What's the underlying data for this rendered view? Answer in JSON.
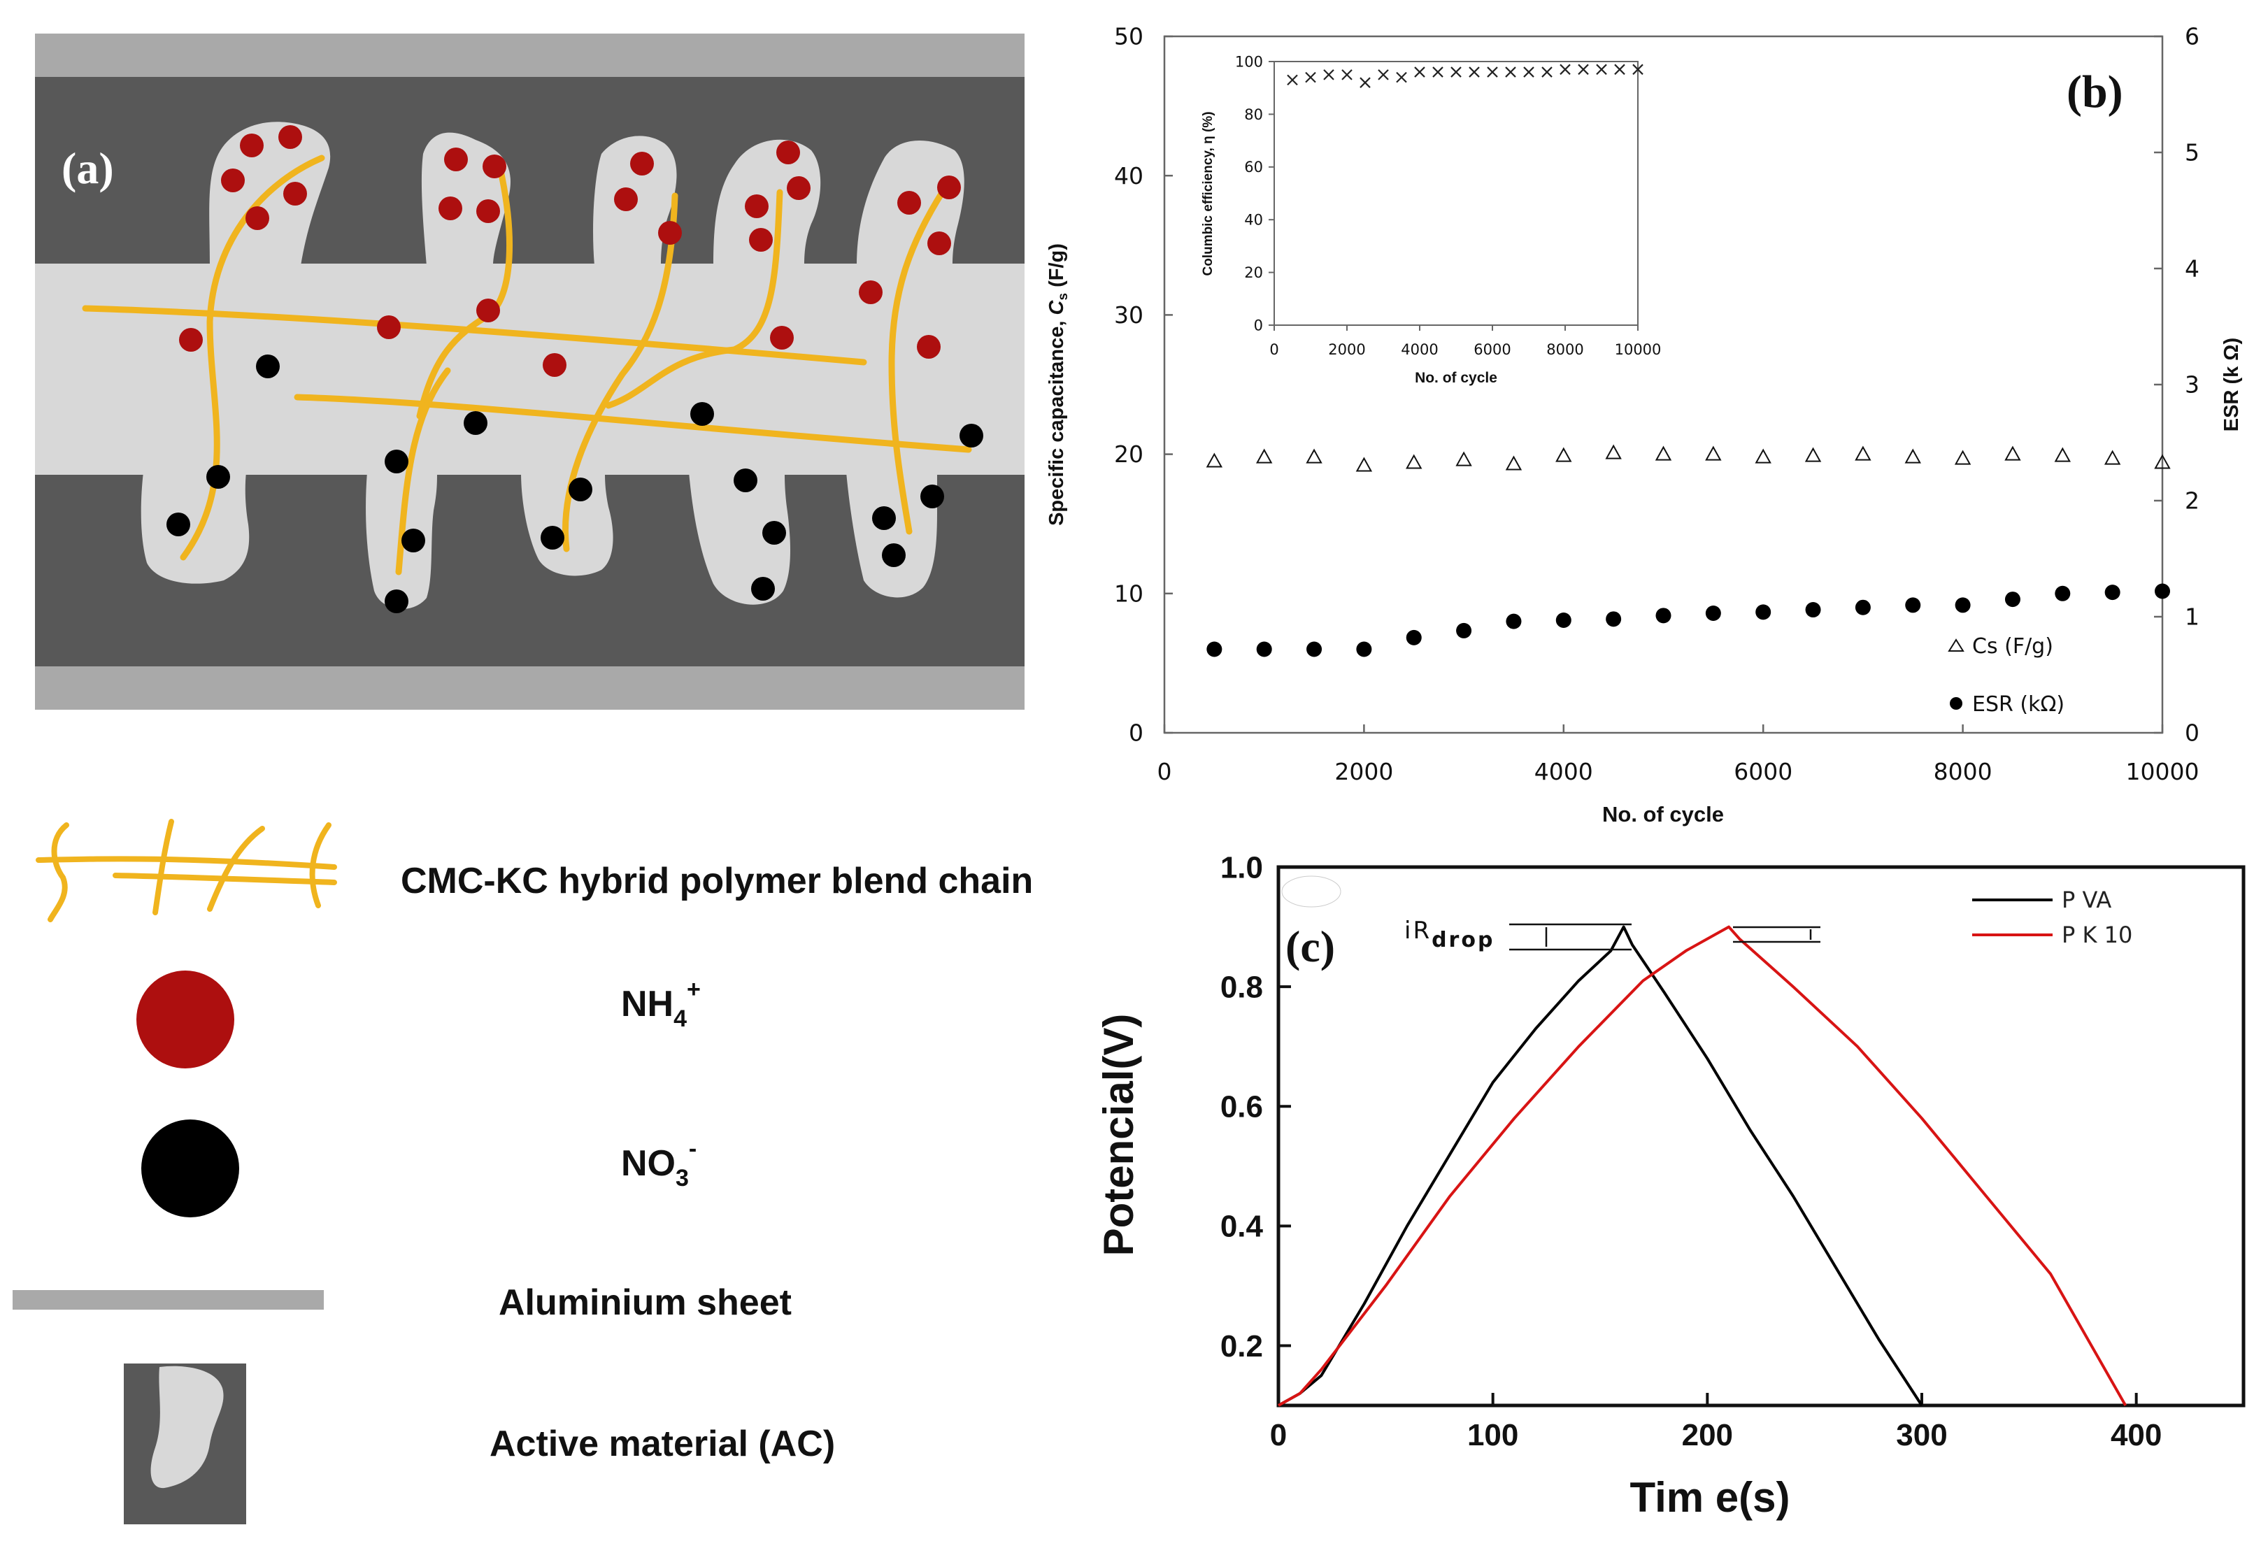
{
  "colors": {
    "electrode_dark": "#585858",
    "sheet_gray": "#a9a9a9",
    "electrolyte_light": "#d8d8d8",
    "chain": "#f0b41e",
    "nh4": "#ad0f0f",
    "no3": "#000000",
    "pva": "#000000",
    "pk10": "#d81414"
  },
  "panel_a": {
    "tag": "(a)",
    "legend": {
      "chain": "CMC-KC hybrid polymer blend chain",
      "nh4_base": "NH",
      "nh4_sub": "4",
      "nh4_sup": "+",
      "no3_base": "NO",
      "no3_sub": "3",
      "no3_sup": "-",
      "sheet": "Aluminium sheet",
      "active": "Active material (AC)"
    }
  },
  "chart_data": [
    {
      "id": "b",
      "type": "scatter",
      "tag": "(b)",
      "xlabel": "No. of cycle",
      "ylabel_base": "Specific capacitance, ",
      "ylabel_var": "C",
      "ylabel_sub": "s",
      "ylabel_unit": " (F/g)",
      "y2label": "ESR (k Ω)",
      "xlim": [
        0,
        10000
      ],
      "ylim": [
        0,
        50
      ],
      "y2lim": [
        0,
        6
      ],
      "xticks": [
        "0",
        "2000",
        "4000",
        "6000",
        "8000",
        "10000"
      ],
      "yticks": [
        "0",
        "10",
        "20",
        "30",
        "40",
        "50"
      ],
      "y2ticks": [
        "0",
        "1",
        "2",
        "3",
        "4",
        "5",
        "6"
      ],
      "series": [
        {
          "name": "Cs (F/g)",
          "marker": "triangle-open",
          "axis": "left",
          "x": [
            500,
            1000,
            1500,
            2000,
            2500,
            3000,
            3500,
            4000,
            4500,
            5000,
            5500,
            6000,
            6500,
            7000,
            7500,
            8000,
            8500,
            9000,
            9500,
            10000
          ],
          "y": [
            19.5,
            19.8,
            19.8,
            19.2,
            19.4,
            19.6,
            19.3,
            19.9,
            20.1,
            20.0,
            20.0,
            19.8,
            19.9,
            20.0,
            19.8,
            19.7,
            20.0,
            19.9,
            19.7,
            19.4
          ]
        },
        {
          "name": "ESR (kΩ)",
          "marker": "circle-filled",
          "axis": "right",
          "x": [
            500,
            1000,
            1500,
            2000,
            2500,
            3000,
            3500,
            4000,
            4500,
            5000,
            5500,
            6000,
            6500,
            7000,
            7500,
            8000,
            8500,
            9000,
            9500,
            10000
          ],
          "y": [
            0.72,
            0.72,
            0.72,
            0.72,
            0.82,
            0.88,
            0.96,
            0.97,
            0.98,
            1.01,
            1.03,
            1.04,
            1.06,
            1.08,
            1.1,
            1.1,
            1.15,
            1.2,
            1.21,
            1.22
          ]
        }
      ],
      "legend": [
        "Cs (F/g)",
        "ESR (kΩ)"
      ],
      "legend_position": "bottom-right",
      "inset": {
        "type": "scatter",
        "xlabel": "No. of cycle",
        "ylabel": "Columbic efficiency, η (%)",
        "xlim": [
          0,
          10000
        ],
        "ylim": [
          0,
          100
        ],
        "xticks": [
          "0",
          "2000",
          "4000",
          "6000",
          "8000",
          "10000"
        ],
        "yticks": [
          "0",
          "20",
          "40",
          "60",
          "80",
          "100"
        ],
        "marker": "x",
        "x": [
          500,
          1000,
          1500,
          2000,
          2500,
          3000,
          3500,
          4000,
          4500,
          5000,
          5500,
          6000,
          6500,
          7000,
          7500,
          8000,
          8500,
          9000,
          9500,
          10000
        ],
        "y": [
          93,
          94,
          95,
          95,
          92,
          95,
          94,
          96,
          96,
          96,
          96,
          96,
          96,
          96,
          96,
          97,
          97,
          97,
          97,
          97
        ]
      }
    },
    {
      "id": "c",
      "type": "line",
      "tag": "(c)",
      "xlabel": "Tim e(s)",
      "ylabel": "Potencial(V)",
      "xlim": [
        0,
        450
      ],
      "ylim": [
        0.1,
        1.0
      ],
      "xticks": [
        "0",
        "100",
        "200",
        "300",
        "400"
      ],
      "yticks": [
        "0.2",
        "0.4",
        "0.6",
        "0.8",
        "1.0"
      ],
      "annotation_base": "iR",
      "annotation_sub": "drop",
      "legend_position": "top-right",
      "series": [
        {
          "name": "P VA",
          "x": [
            0,
            10,
            20,
            40,
            60,
            80,
            100,
            120,
            140,
            155,
            161,
            165,
            180,
            200,
            220,
            240,
            260,
            280,
            300
          ],
          "y": [
            0.1,
            0.12,
            0.15,
            0.27,
            0.4,
            0.52,
            0.64,
            0.73,
            0.81,
            0.86,
            0.9,
            0.87,
            0.79,
            0.68,
            0.56,
            0.45,
            0.33,
            0.21,
            0.1
          ]
        },
        {
          "name": "P K 10",
          "x": [
            0,
            10,
            20,
            50,
            80,
            110,
            140,
            170,
            190,
            205,
            210,
            215,
            240,
            270,
            300,
            330,
            360,
            395
          ],
          "y": [
            0.1,
            0.12,
            0.16,
            0.3,
            0.45,
            0.58,
            0.7,
            0.81,
            0.86,
            0.89,
            0.9,
            0.88,
            0.8,
            0.7,
            0.58,
            0.45,
            0.32,
            0.1
          ]
        }
      ]
    }
  ]
}
